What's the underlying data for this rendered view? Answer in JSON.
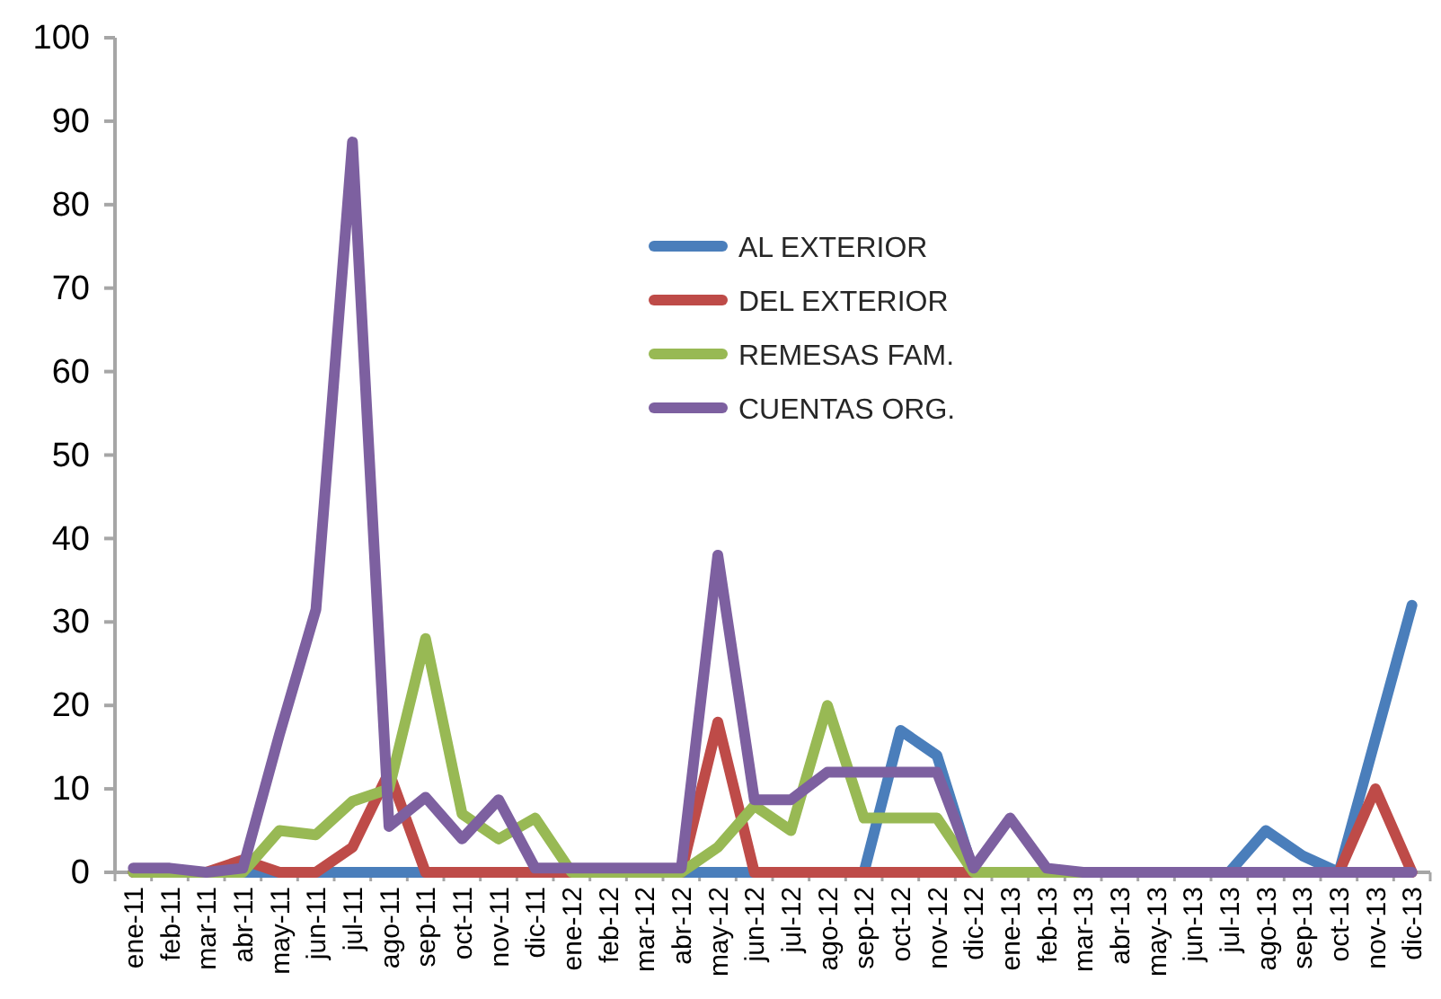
{
  "chart_data": {
    "type": "line",
    "categories": [
      "ene-11",
      "feb-11",
      "mar-11",
      "abr-11",
      "may-11",
      "jun-11",
      "jul-11",
      "ago-11",
      "sep-11",
      "oct-11",
      "nov-11",
      "dic-11",
      "ene-12",
      "feb-12",
      "mar-12",
      "abr-12",
      "may-12",
      "jun-12",
      "jul-12",
      "ago-12",
      "sep-12",
      "oct-12",
      "nov-12",
      "dic-12",
      "ene-13",
      "feb-13",
      "mar-13",
      "abr-13",
      "may-13",
      "jun-13",
      "jul-13",
      "ago-13",
      "sep-13",
      "oct-13",
      "nov-13",
      "dic-13"
    ],
    "series": [
      {
        "name": "AL EXTERIOR",
        "color": "#4a7ebb",
        "values": [
          0,
          0,
          0,
          0,
          0,
          0,
          0,
          0,
          0,
          0,
          0,
          0,
          0,
          0,
          0,
          0,
          0,
          0,
          0,
          0,
          0,
          17,
          14,
          0,
          0,
          0,
          0,
          0,
          0,
          0,
          0,
          5,
          2,
          0,
          16,
          32
        ]
      },
      {
        "name": "DEL EXTERIOR",
        "color": "#be4b48",
        "values": [
          0,
          0,
          0,
          1.5,
          0,
          0,
          3,
          12,
          0,
          0,
          0,
          0,
          0,
          0,
          0,
          0,
          18,
          0,
          0,
          0,
          0,
          0,
          0,
          0,
          0,
          0,
          0,
          0,
          0,
          0,
          0,
          0,
          0,
          0,
          10,
          0
        ]
      },
      {
        "name": "REMESAS FAM.",
        "color": "#98b954",
        "values": [
          0,
          0,
          0,
          0,
          5,
          4.5,
          8.5,
          10,
          28,
          7,
          4,
          6.5,
          0,
          0,
          0,
          0,
          3,
          8,
          5,
          20,
          6.5,
          6.5,
          6.5,
          0,
          0,
          0,
          0,
          0,
          null,
          null,
          null,
          null,
          null,
          null,
          null,
          null
        ]
      },
      {
        "name": "CUENTAS ORG.",
        "color": "#7d60a0",
        "values": [
          0.5,
          0.5,
          0,
          0.5,
          16.5,
          31.5,
          87.5,
          5.5,
          9,
          4,
          8.7,
          0.5,
          0.5,
          0.5,
          0.5,
          0.5,
          38,
          8.7,
          8.7,
          12,
          12,
          12,
          12,
          0.5,
          6.5,
          0.5,
          0,
          0,
          0,
          0,
          0,
          0,
          0,
          0,
          0,
          0
        ]
      }
    ],
    "ylim": [
      0,
      100
    ],
    "yticks": [
      0,
      10,
      20,
      30,
      40,
      50,
      60,
      70,
      80,
      90,
      100
    ],
    "legend": "top"
  }
}
